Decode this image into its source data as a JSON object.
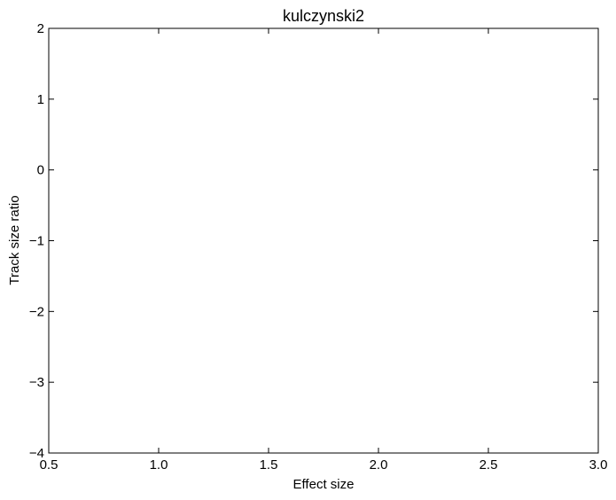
{
  "chart_data": {
    "type": "scatter",
    "title": "kulczynski2",
    "xlabel": "Effect size",
    "ylabel": "Track size ratio",
    "xlim": [
      0.5,
      3.0
    ],
    "ylim": [
      -4,
      2
    ],
    "xticks": [
      0.5,
      1.0,
      1.5,
      2.0,
      2.5,
      3.0
    ],
    "xtick_labels": [
      "0.5",
      "1.0",
      "1.5",
      "2.0",
      "2.5",
      "3.0"
    ],
    "yticks": [
      -4,
      -3,
      -2,
      -1,
      0,
      1,
      2
    ],
    "ytick_labels": [
      "−4",
      "−3",
      "−2",
      "−1",
      "0",
      "1",
      "2"
    ],
    "grid": false,
    "series": []
  }
}
